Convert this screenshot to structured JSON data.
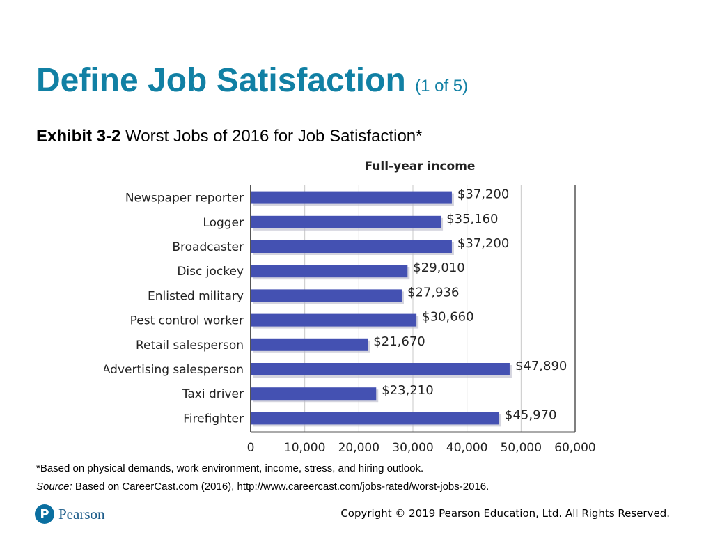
{
  "slide": {
    "title": "Define Job Satisfaction",
    "title_sub": "(1 of 5)",
    "exhibit_label": "Exhibit 3-2",
    "exhibit_title": "Worst Jobs of 2016 for Job Satisfaction*",
    "footnote": "*Based on physical demands, work environment, income, stress, and hiring outlook.",
    "source_label": "Source:",
    "source_text": "Based on CareerCast.com (2016), http://www.careercast.com/jobs-rated/worst-jobs-2016.",
    "logo_text": "Pearson",
    "copyright": "Copyright © 2019 Pearson Education, Ltd. All Rights Reserved.",
    "title_color": "#1180a4"
  },
  "chart_data": {
    "type": "bar",
    "orientation": "horizontal",
    "title": "Full-year income",
    "categories": [
      "Newspaper reporter",
      "Logger",
      "Broadcaster",
      "Disc jockey",
      "Enlisted military",
      "Pest control worker",
      "Retail salesperson",
      "Advertising salesperson",
      "Taxi driver",
      "Firefighter"
    ],
    "values": [
      37200,
      35160,
      37200,
      29010,
      27936,
      30660,
      21670,
      47890,
      23210,
      45970
    ],
    "data_labels": [
      "$37,200",
      "$35,160",
      "$37,200",
      "$29,010",
      "$27,936",
      "$30,660",
      "$21,670",
      "$47,890",
      "$23,210",
      "$45,970"
    ],
    "xlim": [
      0,
      60000
    ],
    "xticks": [
      0,
      10000,
      20000,
      30000,
      40000,
      50000,
      60000
    ],
    "xtick_labels": [
      "0",
      "10,000",
      "20,000",
      "30,000",
      "40,000",
      "50,000",
      "60,000"
    ],
    "grid": true,
    "bar_color": "#4451b2"
  }
}
